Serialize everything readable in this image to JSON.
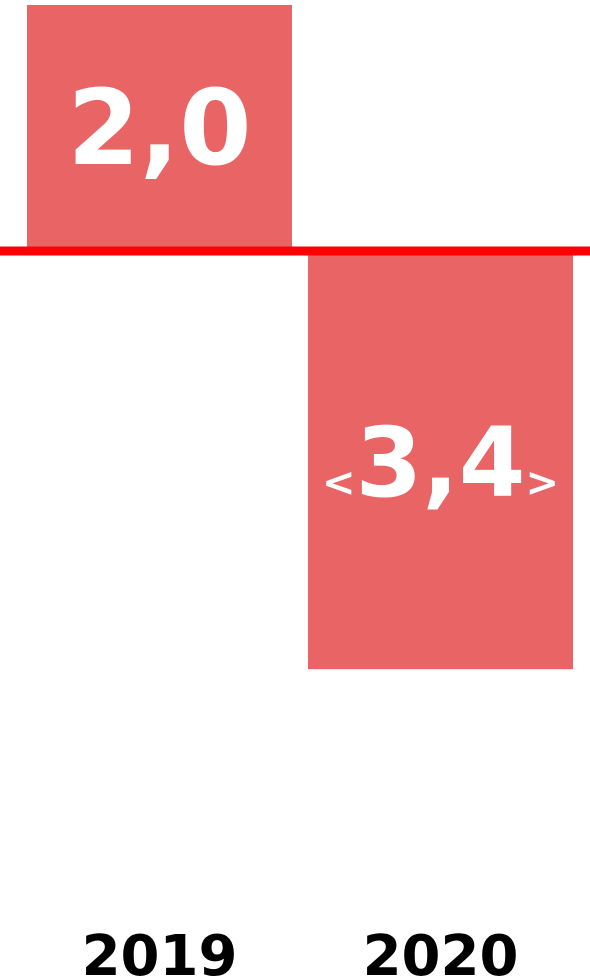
{
  "chart_data": {
    "type": "bar",
    "categories": [
      "2019",
      "2020"
    ],
    "values": [
      2.0,
      -3.4
    ],
    "data_labels": [
      {
        "text": "2,0"
      },
      {
        "prefix": "<",
        "text": "3,4",
        "suffix": ">"
      }
    ],
    "title": "",
    "xlabel": "",
    "ylabel": "",
    "grid": false,
    "legend": "none",
    "zero_line": true,
    "colors": {
      "bar": "#e96465",
      "zero_line": "#ff0000",
      "data_label": "#ffffff",
      "tick_label": "#000000"
    }
  }
}
